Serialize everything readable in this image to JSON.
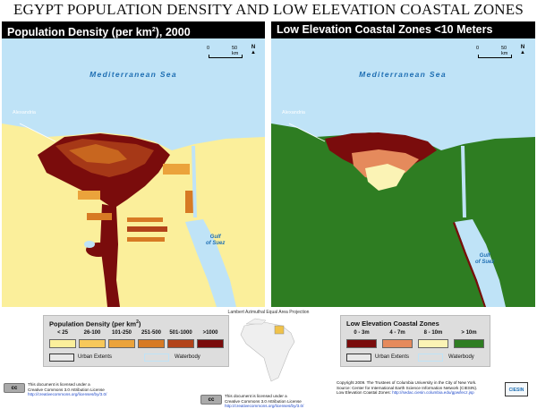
{
  "title": "EGYPT POPULATION DENSITY AND LOW ELEVATION COASTAL ZONES",
  "left_panel": {
    "heading_main": "Population Density (per km",
    "heading_sup": "2",
    "heading_rest": "), 2000",
    "sea_label": "Mediterranean Sea",
    "city_label": "Alexandria",
    "gulf_label_1": "Gulf",
    "gulf_label_2": "of Suez",
    "scale_zero": "0",
    "scale_km": "50 km",
    "north": "N"
  },
  "right_panel": {
    "heading": "Low Elevation Coastal Zones <10 Meters",
    "sea_label": "Mediterranean Sea",
    "city_label": "Alexandria",
    "gulf_label_1": "Gulf",
    "gulf_label_2": "of Suez",
    "scale_zero": "0",
    "scale_km": "50 km",
    "north": "N"
  },
  "projection": "Lambert Azimuthal Equal Area Projection",
  "legend_left": {
    "title_main": "Population Density (per km",
    "title_sup": "2",
    "title_rest": ")",
    "classes": [
      {
        "label": "< 25",
        "color": "#fbef9b"
      },
      {
        "label": "26-100",
        "color": "#f7c85a"
      },
      {
        "label": "101-250",
        "color": "#eba33b"
      },
      {
        "label": "251-500",
        "color": "#d77a24"
      },
      {
        "label": "501-1000",
        "color": "#b2431a"
      },
      {
        "label": ">1000",
        "color": "#7a0c0c"
      }
    ],
    "urban_label": "Urban Extents",
    "water_label": "Waterbody",
    "water_color": "#bfe3f7"
  },
  "legend_right": {
    "title": "Low Elevation Coastal Zones",
    "classes": [
      {
        "label": "0 - 3m",
        "color": "#7a0c0c"
      },
      {
        "label": "4 - 7m",
        "color": "#e58a5c"
      },
      {
        "label": "8 - 10m",
        "color": "#fbf3b5"
      },
      {
        "label": "> 10m",
        "color": "#2e7d22"
      }
    ],
    "urban_label": "Urban Extents",
    "water_label": "Waterbody",
    "water_color": "#bfe3f7"
  },
  "license_left": {
    "badge": "cc",
    "line1": "This document is licensed under a",
    "line2": "Creative Commons 3.0 Attribution License",
    "url": "http://creativecommons.org/licenses/by/3.0/"
  },
  "license_center": {
    "badge": "cc",
    "line1": "This document is licensed under a",
    "line2": "Creative Commons 3.0 Attribution License",
    "url": "http://creativecommons.org/licenses/by/3.0/"
  },
  "copyright": {
    "line1": "Copyright 2009. The Trustees of Columbia University in the City of New York.",
    "line2": "Source: Center for International Earth Science Information Network (CIESIN).",
    "line3_prefix": "Low Elevation Coastal Zones: ",
    "line3_url": "http://sedac.ciesin.columbia.edu/gpw/lecz.jsp"
  },
  "logo": "CIESIN",
  "colors": {
    "sea": "#bfe3f7",
    "desert_left": "#fbef9b",
    "land_right": "#2e7d22",
    "dense": "#7a0c0c"
  }
}
